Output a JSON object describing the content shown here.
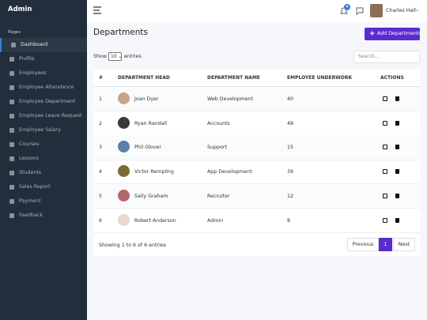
{
  "sidebar": {
    "brand": "Admin",
    "section": "Pages",
    "items": [
      "Dashboard",
      "Profile",
      "Employees",
      "Employee Attendance",
      "Employee Department",
      "Employee Leave Request",
      "Employee Salary",
      "Courses",
      "Lessons",
      "Students",
      "Sales Report",
      "Payment",
      "Feedback"
    ]
  },
  "navbar": {
    "notification_count": "4",
    "user": "Charles Hall"
  },
  "page": {
    "title": "Departments",
    "add_button": "Add Departments",
    "show": "Show",
    "entries_select": "10",
    "entries": "entries",
    "search_placeholder": "Search..."
  },
  "table": {
    "headers": [
      "#",
      "DEPARTMENT HEAD",
      "DEPARTMENT NAME",
      "EMPLOYEE UNDERWORK",
      "ACTIONS"
    ],
    "rows": [
      [
        "1",
        "Joan Dyer",
        "Web Development",
        "40"
      ],
      [
        "2",
        "Ryan Randall",
        "Accounts",
        "48"
      ],
      [
        "3",
        "Phil Glover",
        "Support",
        "15"
      ],
      [
        "4",
        "Victor Rempling",
        "App Development",
        "39"
      ],
      [
        "5",
        "Sally Graham",
        "Recruiter",
        "12"
      ],
      [
        "6",
        "Robert Anderson",
        "Admin",
        "8"
      ]
    ],
    "info": "Showing 1 to 6 of 6 entries",
    "pagination": [
      "Previous",
      "1",
      "Next"
    ]
  }
}
